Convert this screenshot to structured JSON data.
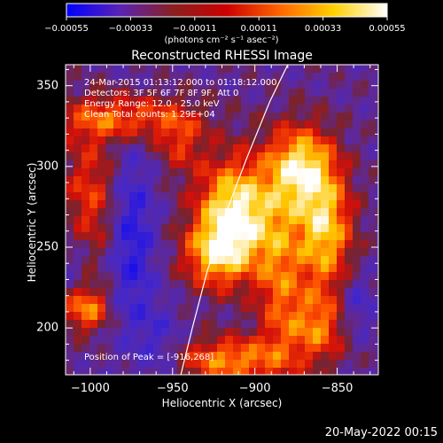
{
  "chart_data": {
    "type": "heatmap",
    "title": "Reconstructed RHESSI Image",
    "xlabel": "Heliocentric X (arcsec)",
    "ylabel": "Heliocentric Y (arcsec)",
    "xlim": [
      -1015,
      -825
    ],
    "ylim": [
      171,
      363
    ],
    "xticks": [
      -1000,
      -950,
      -900,
      -850
    ],
    "xtick_labels": [
      "−1000",
      "−950",
      "−900",
      "−850"
    ],
    "yticks": [
      200,
      250,
      300,
      350
    ],
    "ytick_labels": [
      "200",
      "250",
      "300",
      "350"
    ],
    "colorbar": {
      "range": [
        -0.00055,
        0.00055
      ],
      "ticks": [
        -0.00055,
        -0.00033,
        -0.00011,
        0.00011,
        0.00033,
        0.00055
      ],
      "tick_labels": [
        "−0.00055",
        "−0.00033",
        "−0.00011",
        "0.00011",
        "0.00033",
        "0.00055"
      ],
      "unit_label": "(photons cm⁻² s⁻¹ asec⁻²)",
      "colors": [
        "#0000ff",
        "#5a23b4",
        "#8a2020",
        "#cc0000",
        "#ff6600",
        "#ffd000",
        "#ffffff"
      ]
    },
    "annotations": [
      "24-Mar-2015 01:13:12.000 to 01:18:12.000",
      "Detectors: 3F 5F 6F 7F 8F 9F, Att 0",
      "Energy Range: 12.0 - 25.0 keV",
      "Clean     Total counts: 1.29E+04"
    ],
    "peak_label": "Position of Peak = [-916,268]",
    "peak": [
      -916,
      268
    ],
    "limb_curve": {
      "color": "#ffffff",
      "points": [
        [
          -945,
          171
        ],
        [
          -938,
          200
        ],
        [
          -929,
          235
        ],
        [
          -918,
          270
        ],
        [
          -905,
          305
        ],
        [
          -891,
          340
        ],
        [
          -880,
          363
        ]
      ]
    },
    "grid": false
  },
  "footer": {
    "date": "20-May-2022 00:15"
  }
}
